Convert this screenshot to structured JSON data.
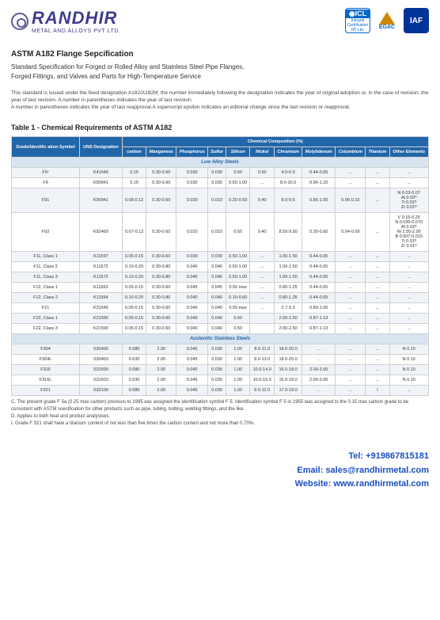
{
  "logo": {
    "main": "RANDHIR",
    "sub": "METAL AND ALLOYS PVT LTD."
  },
  "certs": {
    "icl_top": "◉ICL",
    "icl_sub": "Integral Certification (P) Ltd.",
    "egac": "EGAC",
    "iaf": "IAF"
  },
  "title": {
    "main": "ASTM A182 Flange Sepcification",
    "line1": "Standard Specification for Forged or Rolled Alloy and Stainless Steel Pipe Flanges,",
    "line2": "Forged Fittings, and Valves and Parts for High-Temperature Service"
  },
  "note": "This standard is issued under the fixed designation A182/A182M; the number immediately following the designation indicates the year of original adoption or, in the case of revision, the year of last revision. A number in parentheses indicates the year of last revision.\nA number in parentheses indicates the year of last reapproval.A superscript epsilon indicates an editorial change since the last revision or reapproval.",
  "table": {
    "title": "Table 1 - Chemical Requirements of ASTM A182",
    "headers": {
      "grade": "Grade/Identific ation Symbol",
      "uns": "UNS Designation",
      "comp": "Chemical Composition (%)",
      "cols": [
        "carbon",
        "Manganese",
        "Phosphorus",
        "Sulfur",
        "Silicon",
        "Nickel",
        "Chromium",
        "Molybdenum",
        "Columbium",
        "Titanium",
        "Other Elements"
      ]
    },
    "section1": "Low Alloy Steels",
    "section2": "Austenitic Stainless Steels",
    "rows_low": [
      {
        "g": "F5ᶜ",
        "u": "K41545",
        "c": [
          "0.15",
          "0.30-0.60",
          "0.030",
          "0.030",
          "0.50",
          "0.50",
          "4.0-6.0",
          "0.44-0.65",
          "...",
          "...",
          "..."
        ]
      },
      {
        "g": "F9",
        "u": "K90941",
        "c": [
          "0.15",
          "0.30-0.60",
          "0.030",
          "0.030",
          "0.50-1.00",
          "...",
          "8.0-10.0",
          "0.90-1.10",
          "...",
          "...",
          "..."
        ]
      },
      {
        "g": "F91",
        "u": "K90941",
        "c": [
          "0.08-0.12",
          "0.30-0.60",
          "0.020",
          "0.010",
          "0.20-0.50",
          "0.40",
          "8.0-9.5",
          "0.85-1.05",
          "0.06-0.10",
          "...",
          "N 0.03-0.07\nAl 0.02ᴰ\nTi 0.01ᴰ\nZr 0.01ᴰ"
        ]
      },
      {
        "g": "F92",
        "u": "K92460",
        "c": [
          "0.07-0.13",
          "0.30-0.60",
          "0.020",
          "0.010",
          "0.50",
          "0.40",
          "8.50-9.50",
          "0.30-0.60",
          "0.04-0.09",
          "...",
          "V 0.15-0.25\nN 0.030-0.070\nAl 0.02ᴰ\nW 1.50-2.00\nB 0.007-0.015\nTi 0.01ᴰ\nZr 0.01ᴰ"
        ]
      },
      {
        "g": "F11, Class 1",
        "u": "K11597",
        "c": [
          "0.05-0.15",
          "0.30-0.60",
          "0.030",
          "0.030",
          "0.50-1.00",
          "...",
          "1.00-1.50",
          "0.44-0.65",
          "...",
          "...",
          "..."
        ]
      },
      {
        "g": "F11, Class 2",
        "u": "K11572",
        "c": [
          "0.10-0.20",
          "0.30-0.80",
          "0.040",
          "0.040",
          "0.50-1.00",
          "...",
          "1.00-1.50",
          "0.44-0.65",
          "...",
          "...",
          "..."
        ]
      },
      {
        "g": "F11, Class 3",
        "u": "K11572",
        "c": [
          "0.10-0.20",
          "0.30-0.80",
          "0.040",
          "0.040",
          "0.50-1.00",
          "...",
          "1.00-1.50",
          "0.44-0.65",
          "...",
          "...",
          "..."
        ]
      },
      {
        "g": "F12, Class 1",
        "u": "K11562",
        "c": [
          "0.05-0.15",
          "0.30-0.60",
          "0.045",
          "0.045",
          "0.50 max",
          "...",
          "0.80-1.25",
          "0.44-0.65",
          "...",
          "...",
          "..."
        ]
      },
      {
        "g": "F12, Class 2",
        "u": "K11564",
        "c": [
          "0.10-0.20",
          "0.30-0.80",
          "0.040",
          "0.040",
          "0.10-0.60",
          "...",
          "0.80-1.25",
          "0.44-0.65",
          "...",
          "...",
          "..."
        ]
      },
      {
        "g": "F21",
        "u": "K31545",
        "c": [
          "0.05-0.15",
          "0.30-0.60",
          "0.040",
          "0.040",
          "0.50 max",
          "...",
          "2.7-3.3",
          "0.80-1.06",
          "...",
          "...",
          "..."
        ]
      },
      {
        "g": "F22, Class 1",
        "u": "K21590",
        "c": [
          "0.05-0.15",
          "0.30-0.60",
          "0.040",
          "0.040",
          "0.50",
          "",
          "2.00-2.50",
          "0.87-1.13",
          "...",
          "...",
          "..."
        ]
      },
      {
        "g": "F22, Class 3",
        "u": "K21590",
        "c": [
          "0.05-0.15",
          "0.30-0.60",
          "0.040",
          "0.040",
          "0.50",
          "",
          "2.00-2.50",
          "0.87-1.13",
          "...",
          "...",
          "..."
        ]
      }
    ],
    "rows_aus": [
      {
        "g": "F304",
        "u": "S30400",
        "c": [
          "0.080",
          "2.00",
          "0.045",
          "0.030",
          "1.00",
          "8.0-11.0",
          "18.0-20.0",
          "...",
          "...",
          "...",
          "N 0.10"
        ]
      },
      {
        "g": "F304L",
        "u": "S30403",
        "c": [
          "0.030",
          "2.00",
          "0.045",
          "0.030",
          "1.00",
          "8.0-13.0",
          "18.0-20.0",
          "...",
          "...",
          "...",
          "N 0.10"
        ]
      },
      {
        "g": "F316",
        "u": "S31600",
        "c": [
          "0.080",
          "2.00",
          "0.045",
          "0.030",
          "1.00",
          "10.0-14.0",
          "16.0-18.0",
          "2.00-3.00",
          "...",
          "...",
          "N 0.10"
        ]
      },
      {
        "g": "F316L",
        "u": "S31603",
        "c": [
          "0.030",
          "2.00",
          "0.045",
          "0.030",
          "1.00",
          "10.0-15.0",
          "16.0-18.0",
          "2.00-3.00",
          "...",
          "...",
          "N 0.10"
        ]
      },
      {
        "g": "F321",
        "u": "S32100",
        "c": [
          "0.080",
          "2.00",
          "0.045",
          "0.030",
          "1.00",
          "9.0-12.0",
          "17.0-19.0",
          "...",
          "...",
          "I",
          "..."
        ]
      }
    ]
  },
  "footnotes": {
    "c": "C. The present grade F 5a (0.25 max carbon) previous to 1995 eas assigned the identification symbol F 5. Identification symbol F 5 in 1955 was assigned to the 0.15 max carbon grade to be consistent with ASTM soecification for other products such as pipe, tubing, bolting, welding fittings, and the like.",
    "d": "D. Applies to both heat and product analysises.",
    "i": "I. Grade F 321 shall have a titanium content of not less than five times the carbon content and not more than 0.70%."
  },
  "contact": {
    "tel": "Tel: +919867815181",
    "email": "Email: sales@randhirmetal.com",
    "web": "Website: www.randhirmetal.com"
  }
}
